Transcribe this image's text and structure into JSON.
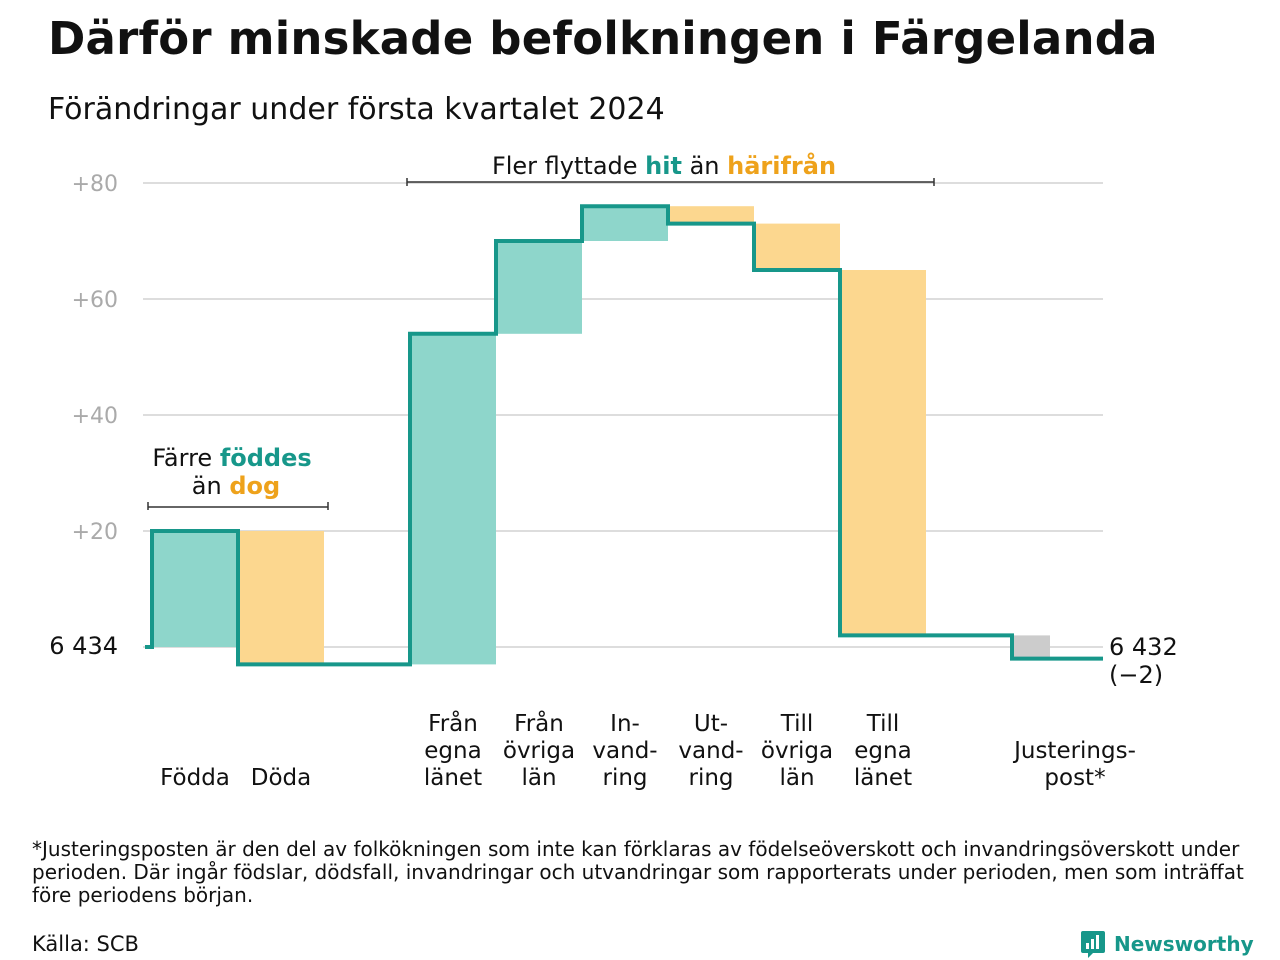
{
  "title": "Därför minskade befolkningen i Färgelanda",
  "subtitle": "Förändringar under första kvartalet 2024",
  "chart_data": {
    "type": "waterfall",
    "start_value": 6434,
    "start_label": "6  434",
    "end_value": 6432,
    "end_label": "6 432",
    "end_change_label": "(−2)",
    "y_ticks": [
      {
        "value": 20,
        "label": "+20"
      },
      {
        "value": 40,
        "label": "+40"
      },
      {
        "value": 60,
        "label": "+60"
      },
      {
        "value": 80,
        "label": "+80"
      }
    ],
    "ylim": [
      -6,
      83
    ],
    "grid": true,
    "steps": [
      {
        "label_lines": [
          "Födda"
        ],
        "change": 20,
        "kind": "in"
      },
      {
        "label_lines": [
          "Döda"
        ],
        "change": -23,
        "kind": "out"
      },
      {
        "label_lines": [
          "Från",
          "egna",
          "länet"
        ],
        "change": 57,
        "kind": "in"
      },
      {
        "label_lines": [
          "Från",
          "övriga",
          "län"
        ],
        "change": 16,
        "kind": "in"
      },
      {
        "label_lines": [
          "In-",
          "vand-",
          "ring"
        ],
        "change": 6,
        "kind": "in"
      },
      {
        "label_lines": [
          "Ut-",
          "vand-",
          "ring"
        ],
        "change": -3,
        "kind": "out"
      },
      {
        "label_lines": [
          "Till",
          "övriga",
          "län"
        ],
        "change": -8,
        "kind": "out"
      },
      {
        "label_lines": [
          "Till",
          "egna",
          "länet"
        ],
        "change": -63,
        "kind": "out"
      },
      {
        "label_lines": [
          "Justerings-",
          "post*"
        ],
        "change": -4,
        "kind": "adjust"
      }
    ],
    "annotations": [
      {
        "id": "births",
        "parts": [
          {
            "text": "Färre ",
            "style": "plain"
          },
          {
            "text": "föddes",
            "style": "in"
          }
        ],
        "parts2": [
          {
            "text": "än ",
            "style": "plain"
          },
          {
            "text": "dog",
            "style": "out"
          }
        ]
      },
      {
        "id": "moves",
        "parts": [
          {
            "text": "Fler flyttade ",
            "style": "plain"
          },
          {
            "text": "hit",
            "style": "in"
          },
          {
            "text": " än ",
            "style": "plain"
          },
          {
            "text": "härifrån",
            "style": "out"
          }
        ]
      }
    ],
    "colors": {
      "in_fill": "#8ed6cb",
      "out_fill": "#fcd78f",
      "adjust_fill": "#cccccc",
      "line": "#17978a",
      "in_text": "#17978a",
      "out_text": "#eea21b",
      "grid": "#dddddd",
      "tick_text": "#aaaaaa"
    }
  },
  "footnote": "*Justeringsposten är den del av folkökningen som inte kan förklaras av födelseöverskott och invandringsöverskott under perioden. Där ingår födslar, dödsfall, invandringar och utvandringar som rapporterats under perioden, men som inträffat före periodens början.",
  "source": "Källa: SCB",
  "brand": {
    "name": "Newsworthy",
    "icon": "newsworthy-logo-icon"
  }
}
